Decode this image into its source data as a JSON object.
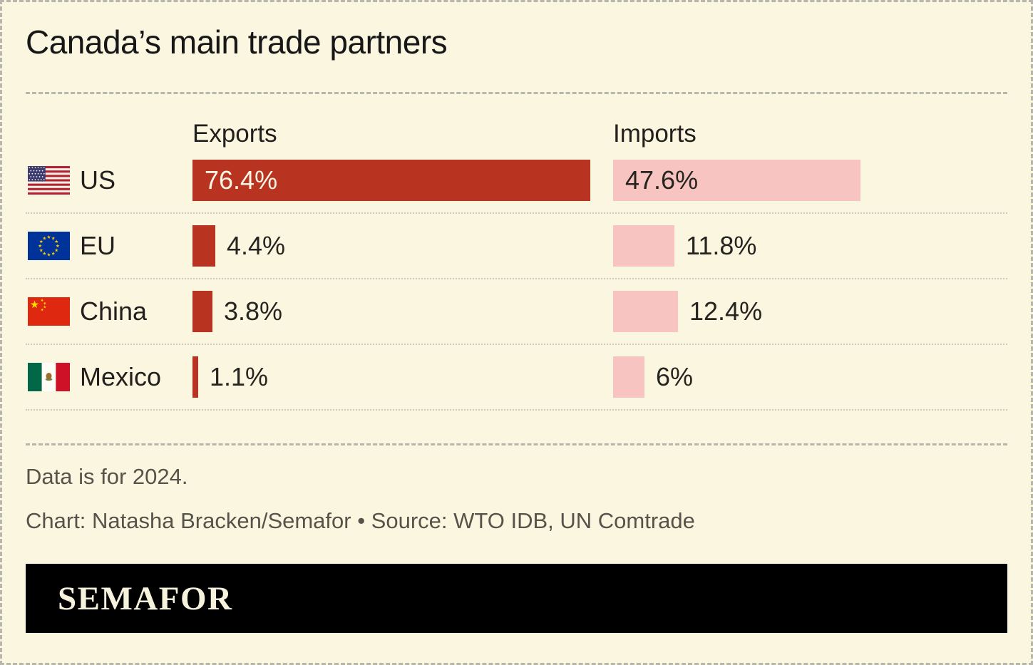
{
  "title": "Canada’s main trade partners",
  "columns": {
    "exports": "Exports",
    "imports": "Imports"
  },
  "rows": [
    {
      "country": "US",
      "flag": "us-flag",
      "exports_label": "76.4%",
      "imports_label": "47.6%"
    },
    {
      "country": "EU",
      "flag": "eu-flag",
      "exports_label": "4.4%",
      "imports_label": "11.8%"
    },
    {
      "country": "China",
      "flag": "china-flag",
      "exports_label": "3.8%",
      "imports_label": "12.4%"
    },
    {
      "country": "Mexico",
      "flag": "mexico-flag",
      "exports_label": "1.1%",
      "imports_label": "6%"
    }
  ],
  "footer": {
    "data_note": "Data is for 2024.",
    "credit": "Chart: Natasha Bracken/Semafor • Source: WTO IDB, UN Comtrade"
  },
  "logo_text": "SEMAFOR",
  "colors": {
    "background": "#faf6e0",
    "export_bar": "#b93420",
    "import_bar": "#f8c4c1",
    "title_text": "#171717",
    "muted_text": "#55534a",
    "row_divider": "#ccc9ba",
    "dashed_border": "#b7b6ab",
    "logo_bar": "#000000",
    "logo_text": "#f7f2dc"
  },
  "chart_data": {
    "type": "bar",
    "orientation": "horizontal",
    "title": "Canada’s main trade partners",
    "categories": [
      "US",
      "EU",
      "China",
      "Mexico"
    ],
    "series": [
      {
        "name": "Exports",
        "values": [
          76.4,
          4.4,
          3.8,
          1.1
        ]
      },
      {
        "name": "Imports",
        "values": [
          47.6,
          11.8,
          12.4,
          6
        ]
      }
    ],
    "unit": "percent",
    "value_range": [
      0,
      80
    ],
    "grid": false,
    "legend_position": "column-headers",
    "note": "Data is for 2024."
  }
}
